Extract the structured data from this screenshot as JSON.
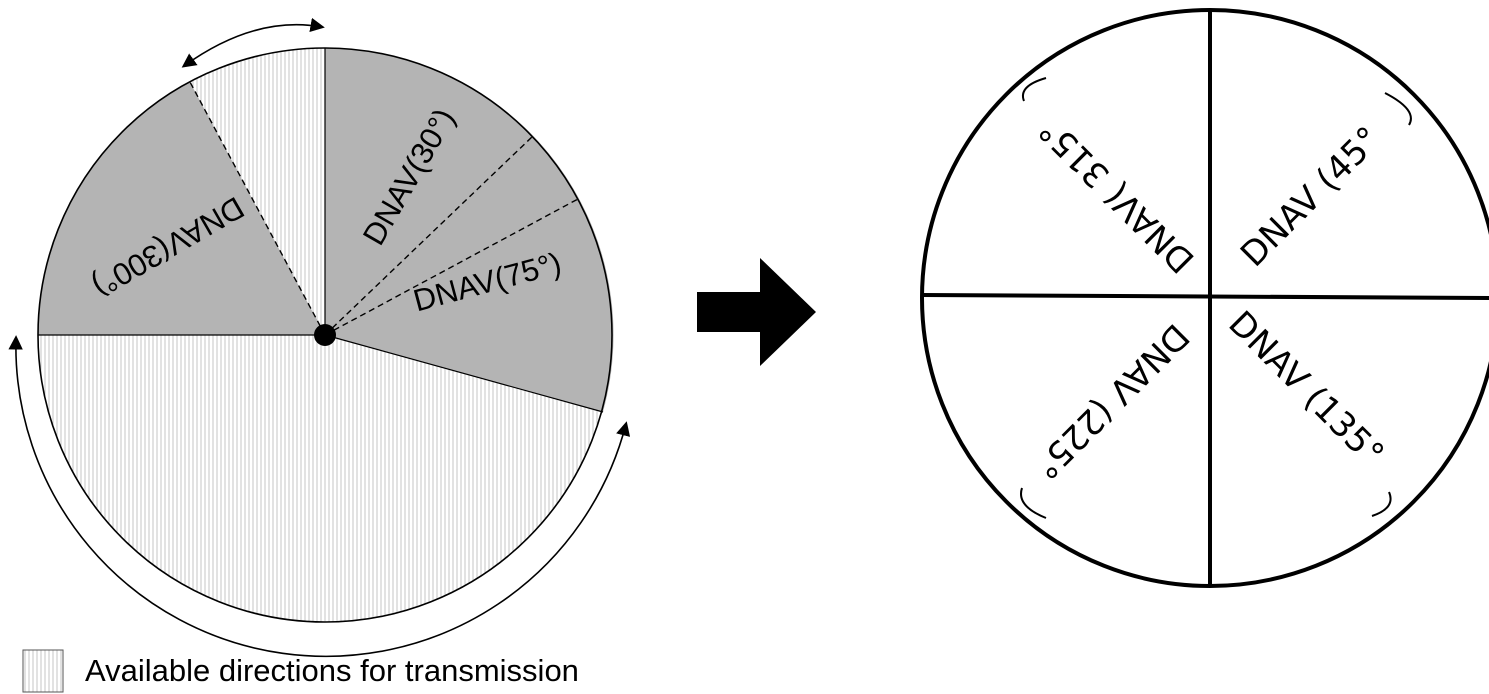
{
  "left_diagram": {
    "sector_labels": [
      {
        "id": "dnav-30",
        "text": "DNAV(30°)"
      },
      {
        "id": "dnav-75",
        "text": "DNAV(75°)"
      },
      {
        "id": "dnav-300",
        "text": "DNAV(300°)"
      }
    ],
    "colors": {
      "blocked_sector": "#b4b4b4",
      "available_pattern": "#c8c8c8",
      "outline": "#000000"
    }
  },
  "legend": {
    "label": "Available directions for transmission"
  },
  "right_diagram": {
    "quadrant_labels": [
      {
        "id": "dnav-45",
        "text": "DNAV (45°"
      },
      {
        "id": "dnav-135",
        "text": "DNAV (135°"
      },
      {
        "id": "dnav-225",
        "text": "DNAV (225°"
      },
      {
        "id": "dnav-315",
        "text": "DNAV( 315°"
      }
    ]
  }
}
